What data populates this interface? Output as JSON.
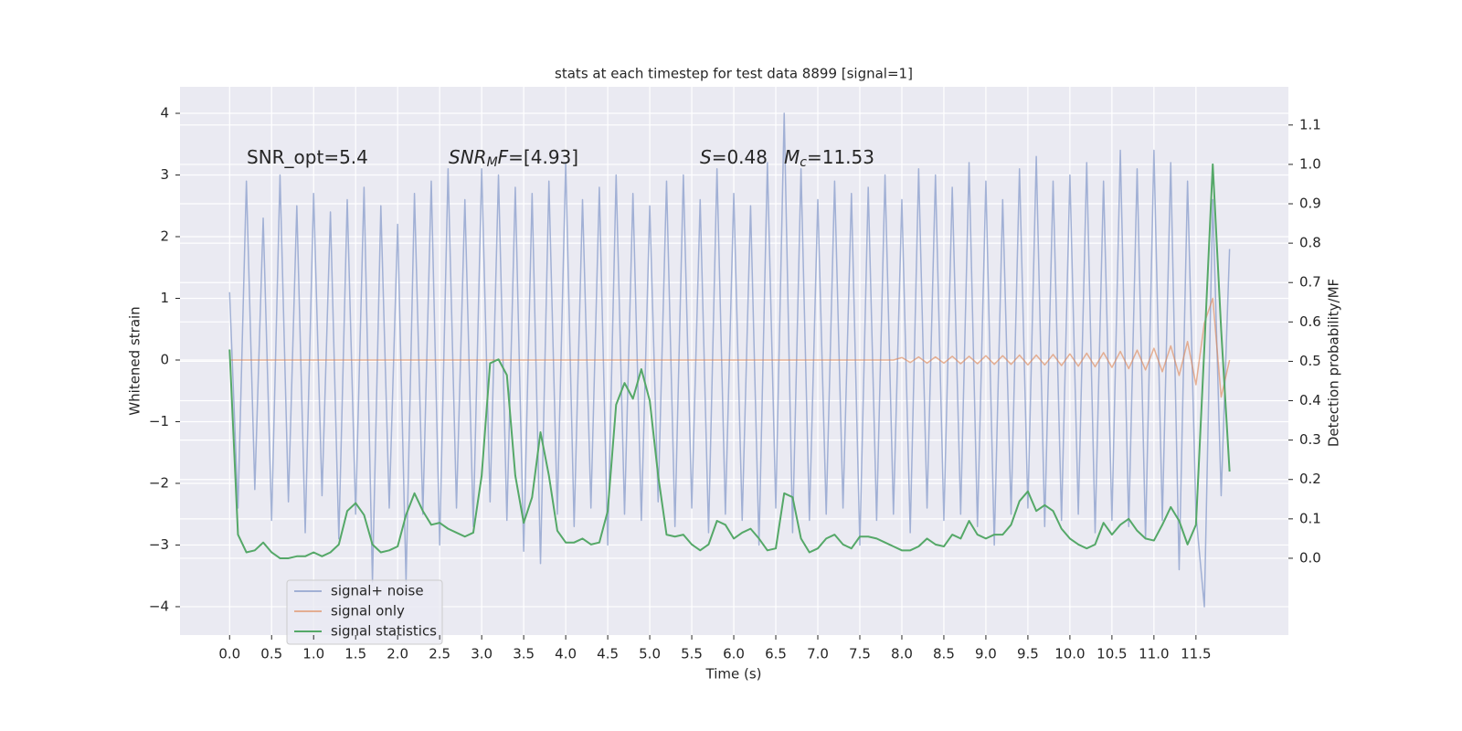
{
  "chart_data": {
    "type": "line",
    "title": "stats at each timestep for test data 8899 [signal=1]",
    "xlabel": "Time (s)",
    "ylabel": "Whitened strain",
    "y2label": "Detection probability/MF",
    "annotations": [
      [
        {
          "text": "SNR_opt=5.4"
        }
      ],
      [
        {
          "text": "SNR",
          "style": "italic"
        },
        {
          "text": "M",
          "style": "italic-sub"
        },
        {
          "text": "F",
          "style": "italic"
        },
        {
          "text": "=[4.93]"
        }
      ],
      [
        {
          "text": "S",
          "style": "italic"
        },
        {
          "text": "=0.48"
        }
      ],
      [
        {
          "text": "M",
          "style": "italic"
        },
        {
          "text": "c",
          "style": "italic-sub"
        },
        {
          "text": "=11.53"
        }
      ]
    ],
    "x": [
      0,
      0.1,
      0.2,
      0.3,
      0.4,
      0.5,
      0.6,
      0.7,
      0.8,
      0.9,
      1,
      1.1,
      1.2,
      1.3,
      1.4,
      1.5,
      1.6,
      1.7,
      1.8,
      1.9,
      2,
      2.1,
      2.2,
      2.3,
      2.4,
      2.5,
      2.6,
      2.7,
      2.8,
      2.9,
      3,
      3.1,
      3.2,
      3.3,
      3.4,
      3.5,
      3.6,
      3.7,
      3.8,
      3.9,
      4,
      4.1,
      4.2,
      4.3,
      4.4,
      4.5,
      4.6,
      4.7,
      4.8,
      4.9,
      5,
      5.1,
      5.2,
      5.3,
      5.4,
      5.5,
      5.6,
      5.7,
      5.8,
      5.9,
      6,
      6.1,
      6.2,
      6.3,
      6.4,
      6.5,
      6.6,
      6.7,
      6.8,
      6.9,
      7,
      7.1,
      7.2,
      7.3,
      7.4,
      7.5,
      7.6,
      7.7,
      7.8,
      7.9,
      8,
      8.1,
      8.2,
      8.3,
      8.4,
      8.5,
      8.6,
      8.7,
      8.8,
      8.9,
      9,
      9.1,
      9.2,
      9.3,
      9.4,
      9.5,
      9.6,
      9.7,
      9.8,
      9.9,
      10,
      10.1,
      10.2,
      10.3,
      10.4,
      10.5,
      10.6,
      10.7,
      10.8,
      10.9,
      11,
      11.1,
      11.2,
      11.3,
      11.4,
      11.5,
      11.6,
      11.7,
      11.8,
      11.9
    ],
    "series": [
      {
        "name": "signal+ noise",
        "color": "#8ea1cd",
        "values": [
          1.1,
          -2.4,
          2.9,
          -2.1,
          2.3,
          -2.6,
          3.0,
          -2.3,
          2.5,
          -2.8,
          2.7,
          -2.2,
          2.4,
          -2.9,
          2.6,
          -2.5,
          2.8,
          -3.6,
          2.5,
          -2.4,
          2.2,
          -3.6,
          2.7,
          -2.5,
          2.9,
          -3.0,
          3.1,
          -2.4,
          2.6,
          -2.7,
          3.1,
          -2.3,
          3.0,
          -2.6,
          2.8,
          -3.1,
          2.7,
          -3.3,
          2.9,
          -2.5,
          3.2,
          -2.7,
          2.6,
          -2.4,
          2.8,
          -3.0,
          3.0,
          -2.5,
          2.7,
          -2.6,
          2.5,
          -2.3,
          2.9,
          -2.7,
          3.0,
          -2.4,
          2.6,
          -2.8,
          3.1,
          -2.5,
          2.7,
          -2.6,
          2.5,
          -3.0,
          3.2,
          -2.4,
          4.0,
          -2.8,
          3.1,
          -2.6,
          2.6,
          -2.5,
          2.9,
          -2.4,
          2.7,
          -3.0,
          2.8,
          -2.6,
          3.0,
          -2.5,
          2.6,
          -2.8,
          3.1,
          -2.4,
          3.0,
          -2.6,
          2.8,
          -2.5,
          3.2,
          -2.7,
          2.9,
          -3.0,
          2.6,
          -2.5,
          3.1,
          -2.4,
          3.3,
          -2.7,
          2.9,
          -2.6,
          3.0,
          -2.5,
          3.2,
          -2.8,
          2.9,
          -2.6,
          3.4,
          -2.7,
          3.1,
          -2.9,
          3.4,
          -2.6,
          3.2,
          -3.4,
          2.9,
          -2.5,
          -4.0,
          2.6,
          -2.2,
          1.8
        ]
      },
      {
        "name": "signal only",
        "color": "#dd8452",
        "values": [
          0,
          0,
          0,
          0,
          0,
          0,
          0,
          0,
          0,
          0,
          0,
          0,
          0,
          0,
          0,
          0,
          0,
          0,
          0,
          0,
          0,
          0,
          0,
          0,
          0,
          0,
          0,
          0,
          0,
          0,
          0,
          0,
          0,
          0,
          0,
          0,
          0,
          0,
          0,
          0,
          0,
          0,
          0,
          0,
          0,
          0,
          0,
          0,
          0,
          0,
          0,
          0,
          0,
          0,
          0,
          0,
          0,
          0,
          0,
          0,
          0,
          0,
          0,
          0,
          0,
          0,
          0,
          0,
          0,
          0,
          0,
          0,
          0,
          0,
          0,
          0,
          0,
          0,
          0,
          0,
          0.04,
          -0.04,
          0.05,
          -0.05,
          0.05,
          -0.05,
          0.06,
          -0.06,
          0.06,
          -0.06,
          0.07,
          -0.07,
          0.07,
          -0.07,
          0.08,
          -0.08,
          0.08,
          -0.08,
          0.09,
          -0.09,
          0.1,
          -0.1,
          0.11,
          -0.11,
          0.12,
          -0.12,
          0.14,
          -0.14,
          0.16,
          -0.16,
          0.19,
          -0.19,
          0.23,
          -0.25,
          0.3,
          -0.4,
          0.6,
          1.0,
          -0.6,
          0.0
        ]
      },
      {
        "name": "signal statistics",
        "color": "#55a868",
        "axis": "y2",
        "values": [
          0.53,
          0.06,
          0.015,
          0.02,
          0.04,
          0.015,
          0.0,
          0.0,
          0.005,
          0.005,
          0.015,
          0.005,
          0.015,
          0.035,
          0.12,
          0.14,
          0.11,
          0.035,
          0.015,
          0.02,
          0.03,
          0.11,
          0.165,
          0.12,
          0.085,
          0.09,
          0.075,
          0.065,
          0.055,
          0.065,
          0.21,
          0.495,
          0.505,
          0.465,
          0.21,
          0.09,
          0.155,
          0.32,
          0.21,
          0.07,
          0.04,
          0.04,
          0.05,
          0.035,
          0.04,
          0.12,
          0.39,
          0.445,
          0.405,
          0.48,
          0.4,
          0.21,
          0.06,
          0.055,
          0.06,
          0.035,
          0.02,
          0.035,
          0.095,
          0.085,
          0.05,
          0.065,
          0.075,
          0.05,
          0.02,
          0.025,
          0.165,
          0.155,
          0.05,
          0.015,
          0.025,
          0.05,
          0.06,
          0.035,
          0.025,
          0.055,
          0.055,
          0.05,
          0.04,
          0.03,
          0.02,
          0.02,
          0.03,
          0.05,
          0.035,
          0.03,
          0.06,
          0.05,
          0.095,
          0.06,
          0.05,
          0.06,
          0.06,
          0.085,
          0.145,
          0.17,
          0.12,
          0.135,
          0.12,
          0.075,
          0.05,
          0.035,
          0.025,
          0.035,
          0.09,
          0.06,
          0.085,
          0.1,
          0.07,
          0.05,
          0.045,
          0.085,
          0.13,
          0.095,
          0.035,
          0.085,
          0.535,
          1.0,
          0.58,
          0.22
        ]
      }
    ],
    "xlim": [
      -0.59,
      12.6
    ],
    "xticks": [
      {
        "value": 0,
        "label": "0.0"
      },
      0.5,
      {
        "value": 1,
        "label": "1.0"
      },
      1.5,
      {
        "value": 2,
        "label": "2.0"
      },
      2.5,
      {
        "value": 3,
        "label": "3.0"
      },
      3.5,
      {
        "value": 4,
        "label": "4.0"
      },
      4.5,
      {
        "value": 5,
        "label": "5.0"
      },
      5.5,
      {
        "value": 6,
        "label": "6.0"
      },
      6.5,
      {
        "value": 7,
        "label": "7.0"
      },
      7.5,
      {
        "value": 8,
        "label": "8.0"
      },
      8.5,
      {
        "value": 9,
        "label": "9.0"
      },
      9.5,
      {
        "value": 10,
        "label": "10.0"
      },
      10.5,
      {
        "value": 11,
        "label": "11.0"
      },
      11.5
    ],
    "ylim": [
      -4.46,
      4.43
    ],
    "yticks": [
      {
        "value": -4,
        "label": "−4"
      },
      {
        "value": -3,
        "label": "−3"
      },
      {
        "value": -2,
        "label": "−2"
      },
      {
        "value": -1,
        "label": "−1"
      },
      0,
      1,
      2,
      3,
      4
    ],
    "y2lim": [
      -0.195,
      1.197
    ],
    "y2ticks": [
      {
        "value": 0,
        "label": "0.0"
      },
      0.1,
      0.2,
      0.3,
      0.4,
      0.5,
      0.6,
      0.7,
      0.8,
      0.9,
      {
        "value": 1,
        "label": "1.0"
      },
      1.1
    ],
    "grid": true,
    "legend": "lower left"
  }
}
